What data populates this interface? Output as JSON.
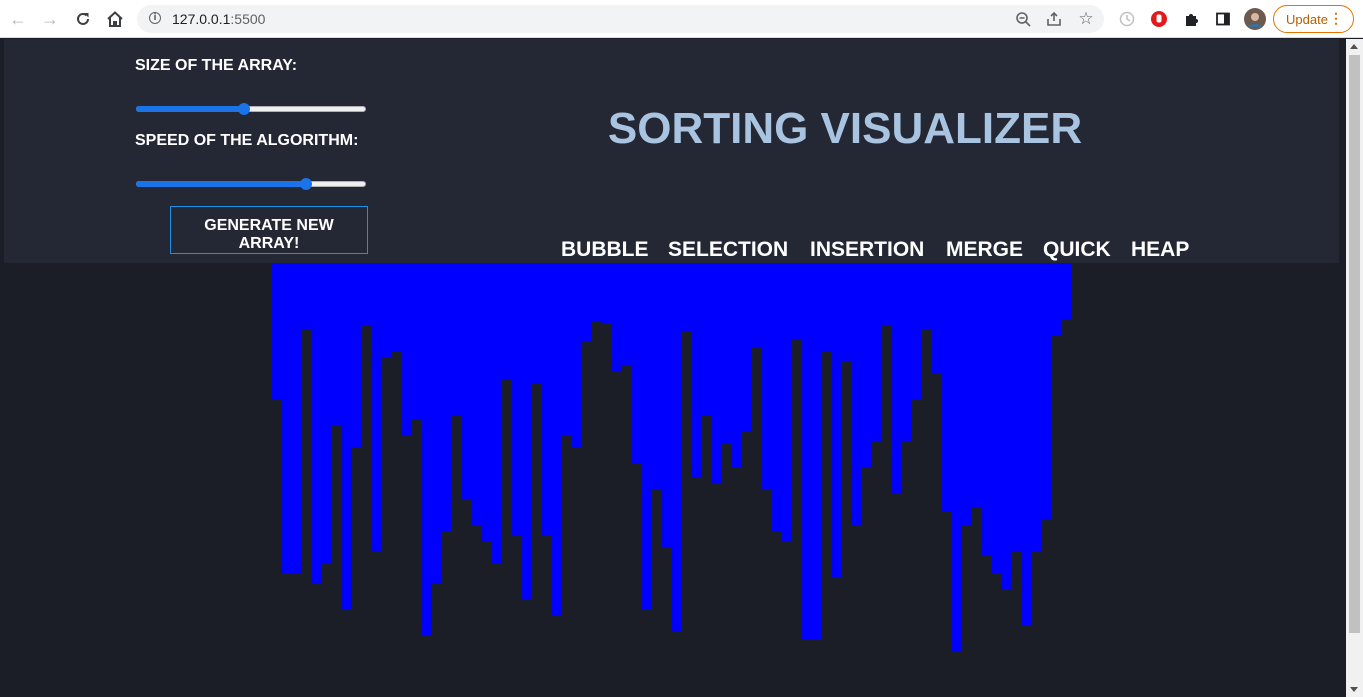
{
  "browser": {
    "url_host": "127.0.0.1",
    "url_port": ":5500",
    "update_label": "Update"
  },
  "controls": {
    "size_label": "SIZE OF THE ARRAY:",
    "size_value": 0.47,
    "speed_label": "SPEED OF THE ALGORITHM:",
    "speed_value": 0.74,
    "generate_label_line1": "GENERATE NEW",
    "generate_label_line2": "ARRAY!"
  },
  "title": "SORTING VISUALIZER",
  "algorithms": [
    "BUBBLE",
    "SELECTION",
    "INSERTION",
    "MERGE",
    "QUICK",
    "HEAP"
  ],
  "colors": {
    "bar": "#0000ff",
    "title": "#a9c4e0",
    "header_bg": "#242834",
    "page_bg": "#1c1e27"
  },
  "array_values": [
    136,
    310,
    310,
    66,
    320,
    300,
    162,
    346,
    184,
    62,
    288,
    94,
    88,
    172,
    156,
    372,
    320,
    268,
    152,
    236,
    262,
    278,
    300,
    116,
    272,
    336,
    120,
    272,
    352,
    172,
    184,
    78,
    58,
    60,
    108,
    102,
    200,
    346,
    226,
    284,
    368,
    68,
    214,
    152,
    220,
    180,
    204,
    168,
    84,
    226,
    268,
    278,
    76,
    376,
    376,
    88,
    314,
    98,
    262,
    204,
    178,
    62,
    230,
    178,
    136,
    66,
    110,
    248,
    388,
    262,
    244,
    292,
    310,
    326,
    288,
    362,
    288,
    256,
    72,
    56
  ]
}
